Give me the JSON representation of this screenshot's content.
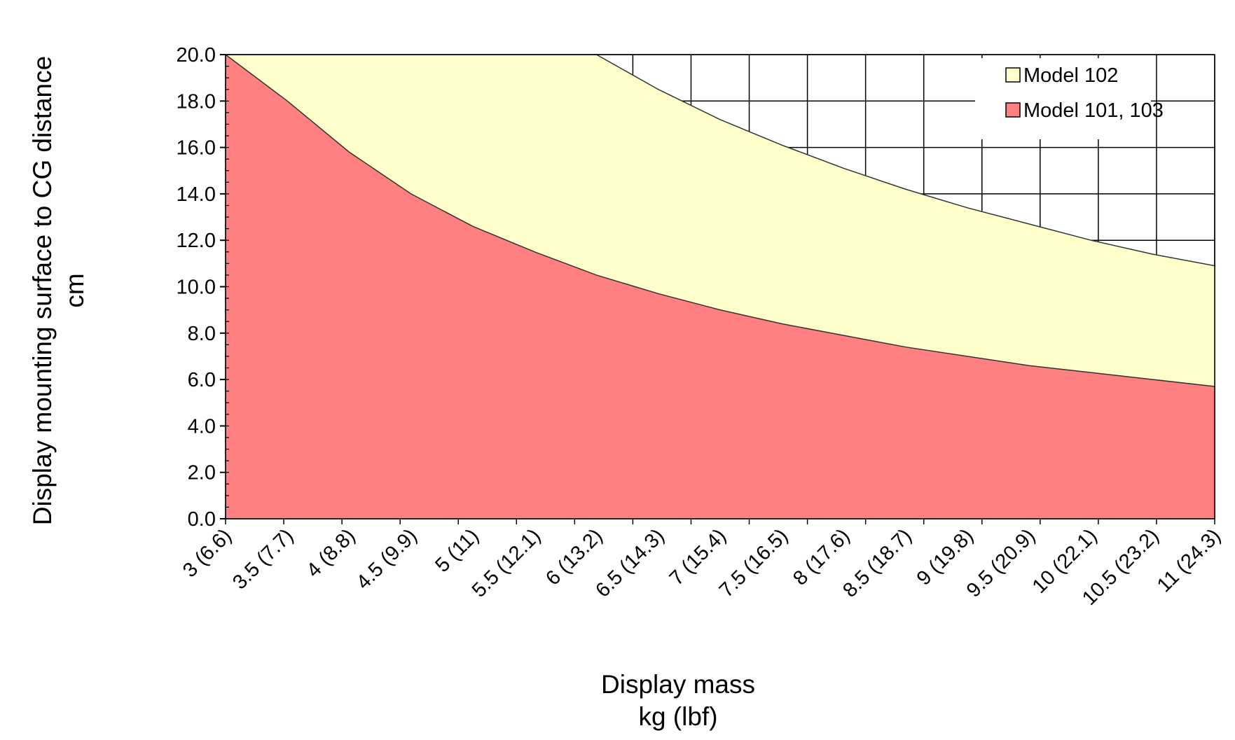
{
  "chart_data": {
    "type": "area",
    "xlabel": [
      "Display mass",
      "kg (lbf)"
    ],
    "ylabel": [
      "Display mounting surface to CG distance",
      "cm"
    ],
    "x": [
      3,
      3.5,
      4,
      4.5,
      5,
      5.5,
      6,
      6.5,
      7,
      7.5,
      8,
      8.5,
      9,
      9.5,
      10,
      10.5,
      11
    ],
    "x_tick_labels": [
      "3 (6.6)",
      "3.5 (7.7)",
      "4 (8.8)",
      "4.5 (9.9)",
      "5 (11)",
      "5.5 (12.1)",
      "6 (13.2)",
      "6.5 (14.3)",
      "7 (15.4)",
      "7.5 (16.5)",
      "8 (17.6)",
      "8.5 (18.7)",
      "9 (19.8)",
      "9.5 (20.9)",
      "10 (22.1)",
      "10.5 (23.2)",
      "11 (24.3)"
    ],
    "y_tick_labels": [
      "0.0",
      "2.0",
      "4.0",
      "6.0",
      "8.0",
      "10.0",
      "12.0",
      "14.0",
      "16.0",
      "18.0",
      "20.0"
    ],
    "ylim": [
      0,
      20
    ],
    "xlim": [
      3,
      11
    ],
    "grid": "major gridlines visible only in the unshaded region",
    "legend_position": "top-right",
    "series": [
      {
        "name": "Model 102",
        "color": "#FFFFCC",
        "values": [
          20.0,
          20.0,
          20.0,
          20.0,
          20.0,
          20.0,
          20.0,
          18.5,
          17.2,
          16.1,
          15.1,
          14.2,
          13.4,
          12.7,
          12.0,
          11.4,
          10.9
        ]
      },
      {
        "name": "Model 101, 103",
        "color": "#FF8080",
        "values": [
          20.0,
          18.0,
          15.8,
          14.0,
          12.6,
          11.5,
          10.5,
          9.7,
          9.0,
          8.4,
          7.9,
          7.4,
          7.0,
          6.6,
          6.3,
          6.0,
          5.7
        ]
      }
    ]
  }
}
